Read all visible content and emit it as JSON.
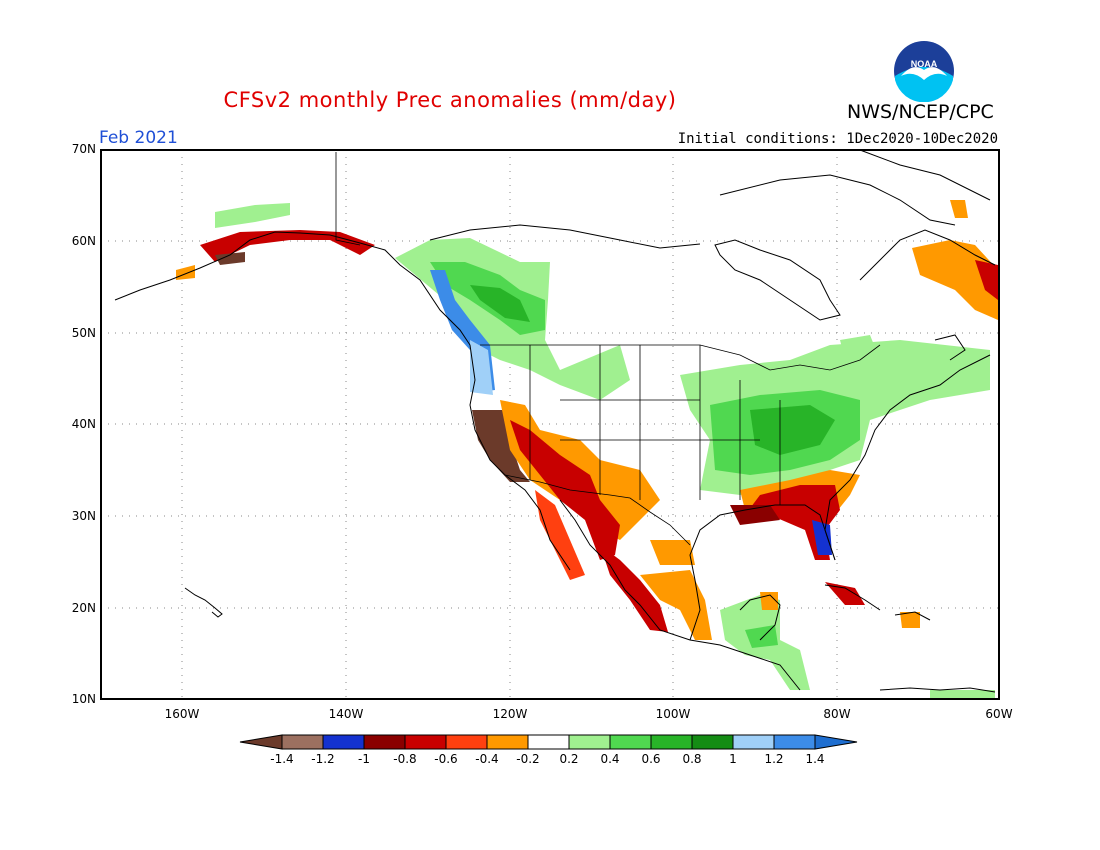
{
  "header": {
    "title": "CFSv2 monthly Prec anomalies (mm/day)",
    "agency": "NWS/NCEP/CPC",
    "logo_text": "NOAA",
    "period": "Feb 2021",
    "initial_conditions": "Initial conditions: 1Dec2020-10Dec2020"
  },
  "axes": {
    "lat_labels": [
      "70N",
      "60N",
      "50N",
      "40N",
      "30N",
      "20N",
      "10N"
    ],
    "lon_labels": [
      "160W",
      "140W",
      "120W",
      "100W",
      "80W",
      "60W"
    ]
  },
  "colorbar": {
    "labels": [
      "-1.4",
      "-1.2",
      "-1",
      "-0.8",
      "-0.6",
      "-0.4",
      "-0.2",
      "0.2",
      "0.4",
      "0.6",
      "0.8",
      "1",
      "1.2",
      "1.4"
    ],
    "colors": [
      "#6b3a2a",
      "#9c7060",
      "#1432d0",
      "#8a0000",
      "#c80000",
      "#ff4010",
      "#ff9900",
      "#ffffff",
      "#a0f090",
      "#50d850",
      "#28b428",
      "#148c14",
      "#a0d0f8",
      "#3c8ce8",
      "#1e6ed0"
    ]
  },
  "colors": {
    "title": "#e00000",
    "period": "#1f4fd6",
    "map_border": "#000000"
  }
}
